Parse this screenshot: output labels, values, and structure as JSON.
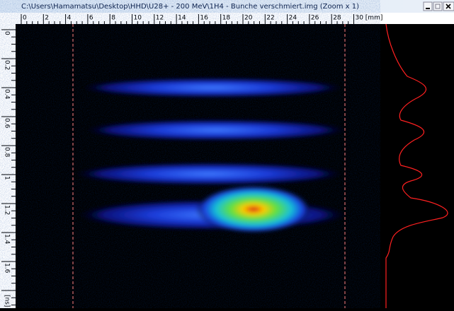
{
  "window": {
    "title": "C:\\Users\\Hamamatsu\\Desktop\\HHD\\U28+ - 200 MeV\\1H4 - Bunche verschmiert.img (Zoom x 1)"
  },
  "horizontal_ruler": {
    "labels": [
      "0",
      "2",
      "4",
      "6",
      "8",
      "10",
      "12",
      "14",
      "16",
      "18",
      "20",
      "22",
      "24",
      "26",
      "28",
      "30"
    ],
    "unit": "[mm]"
  },
  "vertical_ruler": {
    "labels": [
      "0",
      "0.2",
      "0.4",
      "0.6",
      "0.8",
      "1",
      "1.2",
      "1.4",
      "1.6"
    ],
    "unit": "[ns]"
  }
}
